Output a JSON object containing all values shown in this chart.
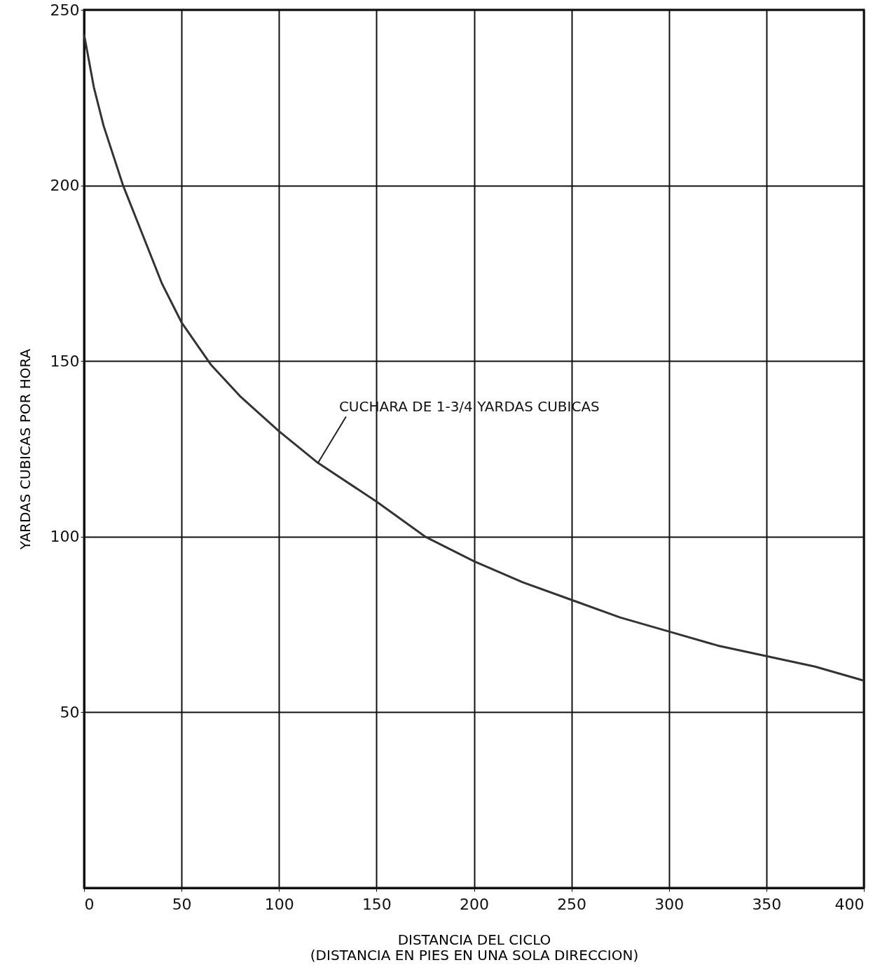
{
  "chart_data": {
    "type": "line",
    "xlabel": "DISTANCIA DEL CICLO\n(DISTANCIA EN PIES EN UNA SOLA DIRECCION)",
    "ylabel": "YARDAS CUBICAS POR HORA",
    "x": [
      0,
      5,
      10,
      20,
      30,
      40,
      50,
      65,
      80,
      100,
      120,
      150,
      175,
      200,
      225,
      250,
      275,
      300,
      325,
      350,
      375,
      400
    ],
    "series": [
      {
        "color": "#333333",
        "values": [
          243,
          228,
          217,
          200,
          186,
          172,
          161,
          149,
          140,
          130,
          121,
          110,
          100,
          93,
          87,
          82,
          77,
          73,
          69,
          66,
          63,
          59
        ]
      }
    ],
    "xlim": [
      0,
      400
    ],
    "xticks": [
      0,
      50,
      100,
      150,
      200,
      250,
      300,
      350,
      400
    ],
    "ylim": [
      0,
      250
    ],
    "yticks": [
      50,
      100,
      150,
      200,
      250
    ],
    "grid": true,
    "marker": "none",
    "line_style": "solid",
    "annotations": [
      {
        "text": "CUCHARA DE 1-3/4 YARDAS CUBICAS",
        "x": 120,
        "y": 121
      }
    ]
  }
}
